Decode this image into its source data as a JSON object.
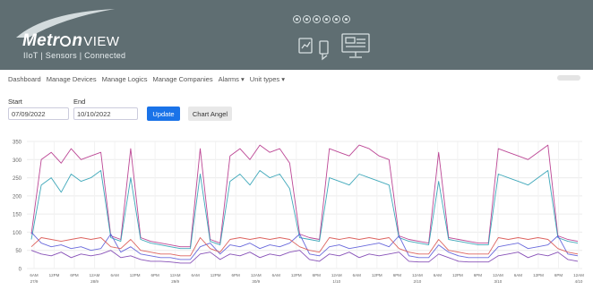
{
  "logo": {
    "brand_pre": "Metr",
    "brand_post": "n",
    "view": "VIEW",
    "tagline": "IIoT | Sensors | Connected"
  },
  "header_icons": [
    "gear-icon",
    "target-icon",
    "wifi-icon",
    "cloud-icon",
    "chart-icon",
    "device-icon"
  ],
  "nav": {
    "items": [
      "Dashboard",
      "Manage Devices",
      "Manage Logics",
      "Manage Companies",
      "Alarms",
      "Unit types"
    ],
    "dropdown_caret": "▾"
  },
  "form": {
    "start_label": "Start",
    "start_value": "07/09/2022",
    "end_label": "End",
    "end_value": "10/10/2022",
    "update_label": "Update",
    "chart_angel_label": "Chart Angel"
  },
  "colors": {
    "header_bg": "#5f6e72",
    "accent": "#1a73e8"
  },
  "chart_data": {
    "type": "line",
    "ylim": [
      0,
      350
    ],
    "yticks": [
      "0",
      "50",
      "100",
      "150",
      "200",
      "250",
      "300",
      "350"
    ],
    "x_ticks": [
      {
        "t": "6AM",
        "d": "27/9"
      },
      {
        "t": "12PM",
        "d": ""
      },
      {
        "t": "6PM",
        "d": ""
      },
      {
        "t": "12AM",
        "d": "28/9"
      },
      {
        "t": "6AM",
        "d": ""
      },
      {
        "t": "12PM",
        "d": ""
      },
      {
        "t": "6PM",
        "d": ""
      },
      {
        "t": "12AM",
        "d": "29/9"
      },
      {
        "t": "6AM",
        "d": ""
      },
      {
        "t": "12PM",
        "d": ""
      },
      {
        "t": "6PM",
        "d": ""
      },
      {
        "t": "12AM",
        "d": "30/9"
      },
      {
        "t": "6AM",
        "d": ""
      },
      {
        "t": "12PM",
        "d": ""
      },
      {
        "t": "6PM",
        "d": ""
      },
      {
        "t": "12AM",
        "d": "1/10"
      },
      {
        "t": "6AM",
        "d": ""
      },
      {
        "t": "12PM",
        "d": ""
      },
      {
        "t": "6PM",
        "d": ""
      },
      {
        "t": "12AM",
        "d": "2/10"
      },
      {
        "t": "6AM",
        "d": ""
      },
      {
        "t": "12PM",
        "d": ""
      },
      {
        "t": "6PM",
        "d": ""
      },
      {
        "t": "12AM",
        "d": "3/10"
      },
      {
        "t": "6AM",
        "d": ""
      },
      {
        "t": "12PM",
        "d": ""
      },
      {
        "t": "6PM",
        "d": ""
      },
      {
        "t": "12AM",
        "d": "4/10"
      }
    ],
    "grid": true,
    "series": [
      {
        "color": "#b5338a",
        "values": [
          95,
          300,
          320,
          290,
          330,
          300,
          310,
          320,
          90,
          80,
          330,
          85,
          75,
          70,
          65,
          60,
          60,
          330,
          80,
          70,
          310,
          330,
          300,
          340,
          320,
          330,
          290,
          95,
          85,
          80,
          330,
          320,
          310,
          340,
          330,
          310,
          300,
          90,
          80,
          75,
          70,
          320,
          85,
          80,
          75,
          70,
          70,
          330,
          320,
          310,
          300,
          320,
          340,
          90,
          80,
          75
        ]
      },
      {
        "color": "#2a9fb3",
        "values": [
          80,
          230,
          250,
          210,
          260,
          240,
          250,
          270,
          85,
          75,
          250,
          80,
          70,
          65,
          60,
          55,
          55,
          260,
          75,
          65,
          240,
          260,
          230,
          270,
          250,
          260,
          220,
          85,
          80,
          75,
          250,
          240,
          230,
          260,
          250,
          240,
          230,
          85,
          75,
          70,
          65,
          240,
          80,
          75,
          70,
          65,
          65,
          260,
          250,
          240,
          230,
          250,
          270,
          85,
          75,
          70
        ]
      },
      {
        "color": "#5a5ad8",
        "values": [
          100,
          70,
          60,
          65,
          55,
          60,
          50,
          55,
          95,
          45,
          60,
          40,
          35,
          30,
          30,
          25,
          25,
          60,
          70,
          40,
          65,
          60,
          70,
          55,
          65,
          60,
          70,
          95,
          40,
          35,
          60,
          65,
          55,
          60,
          65,
          70,
          60,
          90,
          35,
          30,
          30,
          65,
          45,
          35,
          30,
          30,
          30,
          60,
          65,
          70,
          55,
          60,
          65,
          90,
          40,
          35
        ]
      },
      {
        "color": "#d9534f",
        "values": [
          60,
          85,
          80,
          75,
          80,
          85,
          80,
          85,
          60,
          55,
          80,
          50,
          45,
          40,
          40,
          35,
          35,
          85,
          55,
          45,
          80,
          85,
          80,
          85,
          80,
          85,
          80,
          60,
          50,
          45,
          85,
          80,
          85,
          80,
          85,
          80,
          85,
          55,
          45,
          40,
          40,
          80,
          50,
          45,
          40,
          40,
          40,
          85,
          80,
          85,
          80,
          85,
          80,
          55,
          45,
          40
        ]
      },
      {
        "color": "#7b3fb0",
        "values": [
          50,
          40,
          35,
          45,
          30,
          40,
          35,
          40,
          50,
          30,
          35,
          25,
          20,
          20,
          18,
          15,
          15,
          40,
          45,
          25,
          40,
          35,
          45,
          30,
          40,
          35,
          45,
          50,
          25,
          20,
          40,
          35,
          45,
          30,
          40,
          35,
          40,
          45,
          20,
          18,
          18,
          40,
          30,
          20,
          18,
          18,
          18,
          35,
          40,
          45,
          30,
          40,
          35,
          45,
          25,
          20
        ]
      }
    ]
  }
}
